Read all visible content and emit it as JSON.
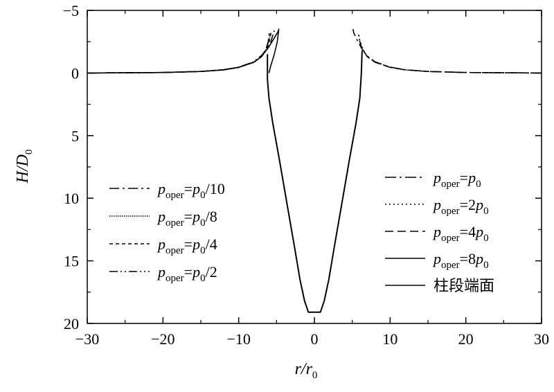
{
  "chart_data": {
    "type": "line",
    "xlabel": "r/r0",
    "ylabel": "H/D0",
    "xlim": [
      -30,
      30
    ],
    "ylim": [
      -5,
      20
    ],
    "y_inverted": true,
    "xticks": [
      -30,
      -20,
      -10,
      0,
      10,
      20,
      30
    ],
    "yticks": [
      -5,
      0,
      5,
      10,
      15,
      20
    ],
    "xtick_labels": [
      "−30",
      "−20",
      "−10",
      "0",
      "10",
      "20",
      "30"
    ],
    "ytick_labels": [
      "−5",
      "0",
      "5",
      "10",
      "15",
      "20"
    ],
    "grid": false,
    "legend_left": [
      {
        "label": "poper=p0/10",
        "style": "dashdot",
        "series": 0
      },
      {
        "label": "poper=p0/8",
        "style": "dotted-dense",
        "series": 1
      },
      {
        "label": "poper=p0/4",
        "style": "dashed-short",
        "series": 2
      },
      {
        "label": "poper=p0/2",
        "style": "dashdotdot",
        "series": 3
      }
    ],
    "legend_right": [
      {
        "label": "poper=p0",
        "style": "longdashdot",
        "series": 4
      },
      {
        "label": "poper=2p0",
        "style": "dotted",
        "series": 5
      },
      {
        "label": "poper=4p0",
        "style": "dashed-long",
        "series": 6
      },
      {
        "label": "poper=8p0",
        "style": "solid",
        "series": 7
      },
      {
        "label": "柱段端面",
        "style": "solid",
        "series": 8
      }
    ],
    "series": [
      {
        "name": "poper=p0/10",
        "x": [
          -30,
          -20,
          -15,
          -12,
          -10,
          -8,
          -7,
          -6.4,
          -6.1,
          -6.0,
          -5.95
        ],
        "y": [
          0,
          -0.04,
          -0.12,
          -0.25,
          -0.45,
          -0.85,
          -1.3,
          -1.9,
          -2.5,
          -3.0,
          -3.2
        ]
      },
      {
        "name": "poper=p0/8",
        "x": [
          -30,
          -20,
          -15,
          -12,
          -10,
          -8,
          -7,
          -6.3,
          -6.0,
          -5.85
        ],
        "y": [
          0,
          -0.04,
          -0.12,
          -0.25,
          -0.45,
          -0.85,
          -1.3,
          -1.95,
          -2.6,
          -3.1
        ]
      },
      {
        "name": "poper=p0/4",
        "x": [
          -30,
          -20,
          -15,
          -12,
          -10,
          -8,
          -7,
          -6.2,
          -5.9,
          -5.7
        ],
        "y": [
          0,
          -0.04,
          -0.12,
          -0.26,
          -0.46,
          -0.88,
          -1.35,
          -2.0,
          -2.7,
          -3.3
        ]
      },
      {
        "name": "poper=p0/2",
        "x": [
          -30,
          -20,
          -15,
          -12,
          -10,
          -8,
          -7,
          -6.0,
          -5.6,
          -5.3
        ],
        "y": [
          0,
          -0.04,
          -0.12,
          -0.26,
          -0.47,
          -0.9,
          -1.4,
          -2.05,
          -2.8,
          -3.4
        ]
      },
      {
        "name": "poper=p0",
        "x": [
          30,
          20,
          15,
          12,
          10,
          8,
          7,
          6.2,
          5.6,
          5.2,
          5.1
        ],
        "y": [
          0,
          -0.04,
          -0.12,
          -0.26,
          -0.47,
          -0.9,
          -1.35,
          -2.0,
          -2.7,
          -3.2,
          -3.5
        ]
      },
      {
        "name": "poper=2p0",
        "x": [
          30,
          20,
          15,
          12,
          10,
          8,
          7,
          6.4,
          6.0,
          5.8
        ],
        "y": [
          0,
          -0.04,
          -0.12,
          -0.25,
          -0.46,
          -0.88,
          -1.3,
          -1.9,
          -2.6,
          -3.1
        ]
      },
      {
        "name": "poper=4p0",
        "x": [
          30,
          20,
          15,
          12,
          10,
          8,
          7,
          6.3,
          6.0,
          5.9
        ],
        "y": [
          0,
          -0.04,
          -0.12,
          -0.25,
          -0.45,
          -0.86,
          -1.3,
          -1.9,
          -2.5,
          -3.0
        ]
      },
      {
        "name": "poper=8p0",
        "x": [
          -30,
          -20,
          -15,
          -12,
          -10,
          -8,
          -7,
          -6,
          -5.3,
          -4.8,
          -4.7,
          -4.9,
          -5.3,
          -5.8,
          -6.0
        ],
        "y": [
          0,
          -0.04,
          -0.12,
          -0.25,
          -0.45,
          -0.85,
          -1.3,
          -2.1,
          -2.8,
          -3.3,
          -3.5,
          -2.5,
          -1.5,
          -0.5,
          0
        ]
      },
      {
        "name": "柱段端面",
        "x": [
          -6.2,
          -6.2,
          -6.0,
          -5.5,
          -4.6,
          -3.6,
          -2.6,
          -1.9,
          -1.3,
          -0.8,
          0.8,
          1.3,
          1.9,
          2.6,
          3.6,
          4.6,
          5.5,
          6.0,
          6.2,
          6.3
        ],
        "y": [
          -1.5,
          0.5,
          2.0,
          4.0,
          7.0,
          10.5,
          14.0,
          16.5,
          18.2,
          19.1,
          19.1,
          18.2,
          16.5,
          14.0,
          10.5,
          7.0,
          4.0,
          2.0,
          0.0,
          -1.8
        ]
      }
    ]
  }
}
